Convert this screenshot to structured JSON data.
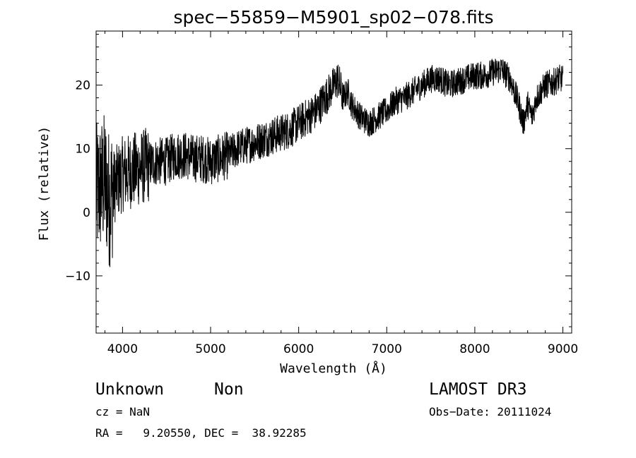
{
  "chart_data": {
    "type": "line",
    "title": "spec−55859−M5901_sp02−078.fits",
    "xlabel": "Wavelength (Å)",
    "ylabel": "Flux (relative)",
    "xlim": [
      3700,
      9100
    ],
    "ylim": [
      -19,
      28.5
    ],
    "xticks": [
      4000,
      5000,
      6000,
      7000,
      8000,
      9000
    ],
    "xtick_labels": [
      "4000",
      "5000",
      "6000",
      "7000",
      "8000",
      "9000"
    ],
    "yticks": [
      -10,
      0,
      10,
      20
    ],
    "ytick_labels": [
      "−10",
      "0",
      "10",
      "20"
    ],
    "grid": false,
    "series": [
      {
        "name": "flux",
        "x": [
          3700,
          3750,
          3800,
          3850,
          3900,
          3950,
          4000,
          4100,
          4200,
          4300,
          4400,
          4500,
          4600,
          4700,
          4800,
          4900,
          5000,
          5100,
          5200,
          5300,
          5400,
          5500,
          5600,
          5700,
          5800,
          5900,
          6000,
          6100,
          6200,
          6300,
          6350,
          6400,
          6450,
          6500,
          6560,
          6600,
          6700,
          6800,
          6900,
          7000,
          7100,
          7200,
          7300,
          7400,
          7500,
          7600,
          7700,
          7800,
          7900,
          8000,
          8100,
          8200,
          8300,
          8400,
          8500,
          8550,
          8600,
          8650,
          8700,
          8800,
          8900,
          8950,
          9000
        ],
        "y": [
          3,
          4,
          5,
          2,
          4,
          5,
          6,
          6.5,
          7,
          7.5,
          8,
          8,
          9,
          9,
          8.5,
          8.5,
          8,
          8.5,
          9,
          10,
          10.5,
          11,
          11.5,
          12,
          12.5,
          13,
          14,
          15,
          16,
          18,
          19,
          20,
          21,
          18,
          19,
          17,
          15,
          14,
          15,
          16,
          17.5,
          18,
          19,
          20,
          21,
          21,
          20,
          20.5,
          21,
          21.5,
          21.5,
          22,
          22.5,
          21,
          17,
          14,
          17,
          15,
          18,
          20,
          20.5,
          21,
          21
        ]
      }
    ]
  },
  "info": {
    "class": "Unknown",
    "subclass": "Non",
    "cz": "cz = NaN",
    "radec": "RA =   9.20550, DEC =  38.92285",
    "survey": "LAMOST DR3",
    "obsdate": "Obs−Date: 20111024"
  }
}
